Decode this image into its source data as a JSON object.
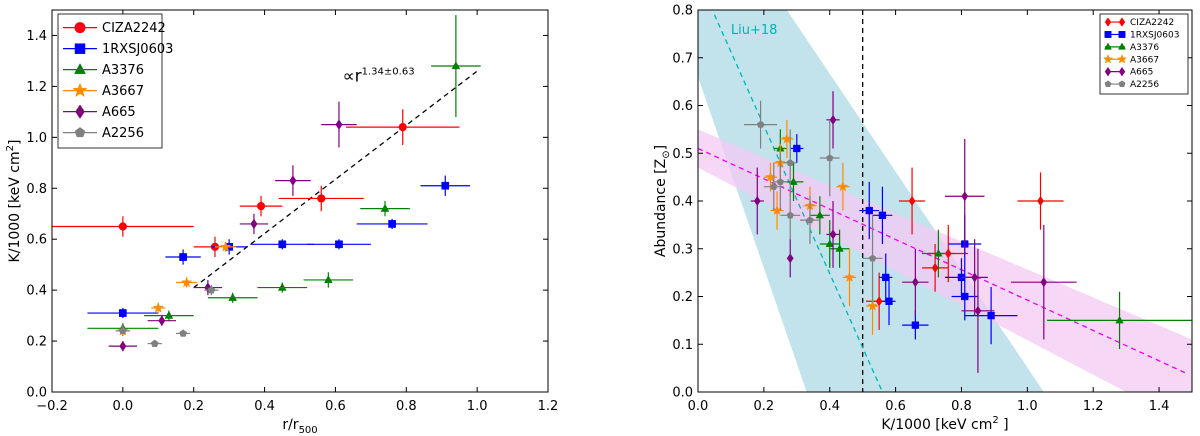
{
  "chart_data": [
    {
      "type": "scatter",
      "xlabel": "r/r",
      "xlabel_sub": "500",
      "ylabel": "K/1000 [keV cm",
      "ylabel_sup": "2",
      "ylabel_end": "]",
      "xlim": [
        -0.2,
        1.2
      ],
      "ylim": [
        0.0,
        1.5
      ],
      "xticks": [
        -0.2,
        0.0,
        0.2,
        0.4,
        0.6,
        0.8,
        1.0,
        1.2
      ],
      "xtick_labels": [
        "−0.2",
        "0.0",
        "0.2",
        "0.4",
        "0.6",
        "0.8",
        "1.0",
        "1.2"
      ],
      "yticks": [
        0.0,
        0.2,
        0.4,
        0.6,
        0.8,
        1.0,
        1.2,
        1.4
      ],
      "ytick_labels": [
        "0.0",
        "0.2",
        "0.4",
        "0.6",
        "0.8",
        "1.0",
        "1.2",
        "1.4"
      ],
      "legend_position": "top-left",
      "annotation": {
        "prefix": "∝r",
        "sup": "1.34±0.63",
        "x": 0.62,
        "y": 1.22
      },
      "fit_line": {
        "x": [
          0.2,
          1.0
        ],
        "y": [
          0.41,
          1.26
        ],
        "color": "#000000",
        "style": "dashed"
      },
      "series": [
        {
          "name": "CIZA2242",
          "color": "#ff0000",
          "marker": "circle",
          "points": [
            {
              "x": 0.0,
              "y": 0.65,
              "xerr": 0.2,
              "yerr": 0.04
            },
            {
              "x": 0.26,
              "y": 0.57,
              "xerr": 0.06,
              "yerr": 0.04
            },
            {
              "x": 0.39,
              "y": 0.73,
              "xerr": 0.06,
              "yerr": 0.04
            },
            {
              "x": 0.56,
              "y": 0.76,
              "xerr": 0.12,
              "yerr": 0.05
            },
            {
              "x": 0.79,
              "y": 1.04,
              "xerr": 0.16,
              "yerr": 0.07
            }
          ]
        },
        {
          "name": "1RXSJ0603",
          "color": "#0000ff",
          "marker": "square",
          "points": [
            {
              "x": 0.0,
              "y": 0.31,
              "xerr": 0.1,
              "yerr": 0.02
            },
            {
              "x": 0.17,
              "y": 0.53,
              "xerr": 0.05,
              "yerr": 0.03
            },
            {
              "x": 0.3,
              "y": 0.57,
              "xerr": 0.05,
              "yerr": 0.03
            },
            {
              "x": 0.45,
              "y": 0.58,
              "xerr": 0.09,
              "yerr": 0.02
            },
            {
              "x": 0.61,
              "y": 0.58,
              "xerr": 0.09,
              "yerr": 0.02
            },
            {
              "x": 0.76,
              "y": 0.66,
              "xerr": 0.1,
              "yerr": 0.02
            },
            {
              "x": 0.91,
              "y": 0.81,
              "xerr": 0.07,
              "yerr": 0.04
            }
          ]
        },
        {
          "name": "A3376",
          "color": "#008000",
          "marker": "triangle",
          "points": [
            {
              "x": 0.0,
              "y": 0.25,
              "xerr": 0.1,
              "yerr": 0.02
            },
            {
              "x": 0.13,
              "y": 0.3,
              "xerr": 0.07,
              "yerr": 0.02
            },
            {
              "x": 0.31,
              "y": 0.37,
              "xerr": 0.07,
              "yerr": 0.02
            },
            {
              "x": 0.45,
              "y": 0.41,
              "xerr": 0.07,
              "yerr": 0.02
            },
            {
              "x": 0.58,
              "y": 0.44,
              "xerr": 0.07,
              "yerr": 0.03
            },
            {
              "x": 0.74,
              "y": 0.72,
              "xerr": 0.07,
              "yerr": 0.03
            },
            {
              "x": 0.94,
              "y": 1.28,
              "xerr": 0.07,
              "yerr": 0.2
            }
          ]
        },
        {
          "name": "A3667",
          "color": "#ff8c00",
          "marker": "star",
          "points": [
            {
              "x": 0.0,
              "y": 0.24,
              "xerr": 0.02,
              "yerr": 0.02
            },
            {
              "x": 0.1,
              "y": 0.33,
              "xerr": 0.02,
              "yerr": 0.02
            },
            {
              "x": 0.18,
              "y": 0.43,
              "xerr": 0.03,
              "yerr": 0.02
            },
            {
              "x": 0.29,
              "y": 0.57,
              "xerr": 0.03,
              "yerr": 0.02
            }
          ]
        },
        {
          "name": "A665",
          "color": "#800080",
          "marker": "diamond",
          "points": [
            {
              "x": 0.0,
              "y": 0.18,
              "xerr": 0.04,
              "yerr": 0.02
            },
            {
              "x": 0.11,
              "y": 0.28,
              "xerr": 0.04,
              "yerr": 0.02
            },
            {
              "x": 0.24,
              "y": 0.41,
              "xerr": 0.04,
              "yerr": 0.03
            },
            {
              "x": 0.37,
              "y": 0.66,
              "xerr": 0.04,
              "yerr": 0.04
            },
            {
              "x": 0.48,
              "y": 0.83,
              "xerr": 0.05,
              "yerr": 0.06
            },
            {
              "x": 0.61,
              "y": 1.05,
              "xerr": 0.05,
              "yerr": 0.09
            }
          ]
        },
        {
          "name": "A2256",
          "color": "#808080",
          "marker": "pentagon",
          "points": [
            {
              "x": 0.0,
              "y": 0.24,
              "xerr": 0.02,
              "yerr": 0.02
            },
            {
              "x": 0.09,
              "y": 0.19,
              "xerr": 0.02,
              "yerr": 0.01
            },
            {
              "x": 0.17,
              "y": 0.23,
              "xerr": 0.02,
              "yerr": 0.01
            },
            {
              "x": 0.25,
              "y": 0.4,
              "xerr": 0.02,
              "yerr": 0.02
            }
          ]
        }
      ]
    },
    {
      "type": "scatter",
      "xlabel": "K/1000 [keV cm",
      "xlabel_sup": "2",
      "xlabel_end": " ]",
      "ylabel": "Abundance [Z",
      "ylabel_sub": "⊙",
      "ylabel_end": "]",
      "xlim": [
        0.0,
        1.5
      ],
      "ylim": [
        0.0,
        0.8
      ],
      "xticks": [
        0.0,
        0.2,
        0.4,
        0.6,
        0.8,
        1.0,
        1.2,
        1.4
      ],
      "xtick_labels": [
        "0.0",
        "0.2",
        "0.4",
        "0.6",
        "0.8",
        "1.0",
        "1.2",
        "1.4"
      ],
      "yticks": [
        0.0,
        0.1,
        0.2,
        0.3,
        0.4,
        0.5,
        0.6,
        0.7,
        0.8
      ],
      "ytick_labels": [
        "0.0",
        "0.1",
        "0.2",
        "0.3",
        "0.4",
        "0.5",
        "0.6",
        "0.7",
        "0.8"
      ],
      "legend_position": "top-right",
      "annotation": {
        "text": "Liu+18",
        "x": 0.1,
        "y": 0.75,
        "color": "#00b5b5"
      },
      "vline": {
        "x": 0.5,
        "color": "#000000",
        "style": "dashed"
      },
      "bands": [
        {
          "color": "#add8e6",
          "polygon": [
            [
              0.0,
              0.8
            ],
            [
              0.27,
              0.8
            ],
            [
              1.05,
              0.0
            ],
            [
              0.33,
              0.0
            ],
            [
              0.0,
              0.66
            ]
          ]
        },
        {
          "color": "#f3c9f3",
          "polygon": [
            [
              0.0,
              0.55
            ],
            [
              1.5,
              0.11
            ],
            [
              1.5,
              0.0
            ],
            [
              1.3,
              0.0
            ],
            [
              0.0,
              0.47
            ]
          ]
        }
      ],
      "fit_lines": [
        {
          "x": [
            0.05,
            0.56
          ],
          "y": [
            0.79,
            0.0
          ],
          "color": "#00b5b5",
          "style": "dashed"
        },
        {
          "x": [
            0.0,
            1.48
          ],
          "y": [
            0.51,
            0.04
          ],
          "color": "#ee00ee",
          "style": "dashed"
        }
      ],
      "series": [
        {
          "name": "CIZA2242",
          "color": "#ff0000",
          "marker": "diamond",
          "points": [
            {
              "x": 0.55,
              "y": 0.19,
              "xerr": 0.04,
              "yerr": 0.06
            },
            {
              "x": 0.65,
              "y": 0.4,
              "xerr": 0.04,
              "yerr": 0.07
            },
            {
              "x": 0.72,
              "y": 0.26,
              "xerr": 0.04,
              "yerr": 0.05
            },
            {
              "x": 0.76,
              "y": 0.29,
              "xerr": 0.06,
              "yerr": 0.06
            },
            {
              "x": 1.04,
              "y": 0.4,
              "xerr": 0.07,
              "yerr": 0.06
            }
          ]
        },
        {
          "name": "1RXSJ0603",
          "color": "#0000ff",
          "marker": "square",
          "points": [
            {
              "x": 0.3,
              "y": 0.51,
              "xerr": 0.02,
              "yerr": 0.03
            },
            {
              "x": 0.52,
              "y": 0.38,
              "xerr": 0.03,
              "yerr": 0.06
            },
            {
              "x": 0.56,
              "y": 0.37,
              "xerr": 0.03,
              "yerr": 0.06
            },
            {
              "x": 0.57,
              "y": 0.24,
              "xerr": 0.02,
              "yerr": 0.05
            },
            {
              "x": 0.58,
              "y": 0.19,
              "xerr": 0.02,
              "yerr": 0.05
            },
            {
              "x": 0.66,
              "y": 0.14,
              "xerr": 0.04,
              "yerr": 0.03
            },
            {
              "x": 0.8,
              "y": 0.24,
              "xerr": 0.05,
              "yerr": 0.04
            },
            {
              "x": 0.81,
              "y": 0.31,
              "xerr": 0.05,
              "yerr": 0.06
            },
            {
              "x": 0.81,
              "y": 0.2,
              "xerr": 0.04,
              "yerr": 0.05
            },
            {
              "x": 0.89,
              "y": 0.16,
              "xerr": 0.08,
              "yerr": 0.06
            }
          ]
        },
        {
          "name": "A3376",
          "color": "#008000",
          "marker": "triangle",
          "points": [
            {
              "x": 0.25,
              "y": 0.51,
              "xerr": 0.02,
              "yerr": 0.04
            },
            {
              "x": 0.29,
              "y": 0.44,
              "xerr": 0.03,
              "yerr": 0.04
            },
            {
              "x": 0.37,
              "y": 0.37,
              "xerr": 0.03,
              "yerr": 0.04
            },
            {
              "x": 0.4,
              "y": 0.31,
              "xerr": 0.03,
              "yerr": 0.05
            },
            {
              "x": 0.43,
              "y": 0.3,
              "xerr": 0.03,
              "yerr": 0.04
            },
            {
              "x": 0.73,
              "y": 0.29,
              "xerr": 0.05,
              "yerr": 0.05
            },
            {
              "x": 1.28,
              "y": 0.15,
              "xerr": 0.22,
              "yerr": 0.06
            }
          ]
        },
        {
          "name": "A3667",
          "color": "#ff8c00",
          "marker": "star",
          "points": [
            {
              "x": 0.22,
              "y": 0.45,
              "xerr": 0.02,
              "yerr": 0.03
            },
            {
              "x": 0.24,
              "y": 0.38,
              "xerr": 0.02,
              "yerr": 0.04
            },
            {
              "x": 0.25,
              "y": 0.48,
              "xerr": 0.02,
              "yerr": 0.04
            },
            {
              "x": 0.27,
              "y": 0.53,
              "xerr": 0.02,
              "yerr": 0.04
            },
            {
              "x": 0.34,
              "y": 0.39,
              "xerr": 0.02,
              "yerr": 0.04
            },
            {
              "x": 0.44,
              "y": 0.43,
              "xerr": 0.02,
              "yerr": 0.05
            },
            {
              "x": 0.46,
              "y": 0.24,
              "xerr": 0.02,
              "yerr": 0.06
            },
            {
              "x": 0.53,
              "y": 0.18,
              "xerr": 0.02,
              "yerr": 0.06
            }
          ]
        },
        {
          "name": "A665",
          "color": "#800080",
          "marker": "diamond",
          "points": [
            {
              "x": 0.18,
              "y": 0.4,
              "xerr": 0.02,
              "yerr": 0.07
            },
            {
              "x": 0.28,
              "y": 0.28,
              "xerr": 0.01,
              "yerr": 0.04
            },
            {
              "x": 0.41,
              "y": 0.57,
              "xerr": 0.02,
              "yerr": 0.06
            },
            {
              "x": 0.41,
              "y": 0.33,
              "xerr": 0.02,
              "yerr": 0.07
            },
            {
              "x": 0.66,
              "y": 0.23,
              "xerr": 0.04,
              "yerr": 0.07
            },
            {
              "x": 0.81,
              "y": 0.41,
              "xerr": 0.06,
              "yerr": 0.12
            },
            {
              "x": 0.84,
              "y": 0.24,
              "xerr": 0.04,
              "yerr": 0.08
            },
            {
              "x": 0.85,
              "y": 0.17,
              "xerr": 0.05,
              "yerr": 0.13
            },
            {
              "x": 1.05,
              "y": 0.23,
              "xerr": 0.1,
              "yerr": 0.12
            }
          ]
        },
        {
          "name": "A2256",
          "color": "#808080",
          "marker": "pentagon",
          "points": [
            {
              "x": 0.19,
              "y": 0.56,
              "xerr": 0.05,
              "yerr": 0.05
            },
            {
              "x": 0.23,
              "y": 0.43,
              "xerr": 0.03,
              "yerr": 0.05
            },
            {
              "x": 0.25,
              "y": 0.44,
              "xerr": 0.02,
              "yerr": 0.06
            },
            {
              "x": 0.28,
              "y": 0.48,
              "xerr": 0.02,
              "yerr": 0.07
            },
            {
              "x": 0.28,
              "y": 0.37,
              "xerr": 0.03,
              "yerr": 0.05
            },
            {
              "x": 0.34,
              "y": 0.36,
              "xerr": 0.03,
              "yerr": 0.05
            },
            {
              "x": 0.4,
              "y": 0.49,
              "xerr": 0.03,
              "yerr": 0.08
            },
            {
              "x": 0.53,
              "y": 0.28,
              "xerr": 0.03,
              "yerr": 0.09
            }
          ]
        }
      ]
    }
  ]
}
